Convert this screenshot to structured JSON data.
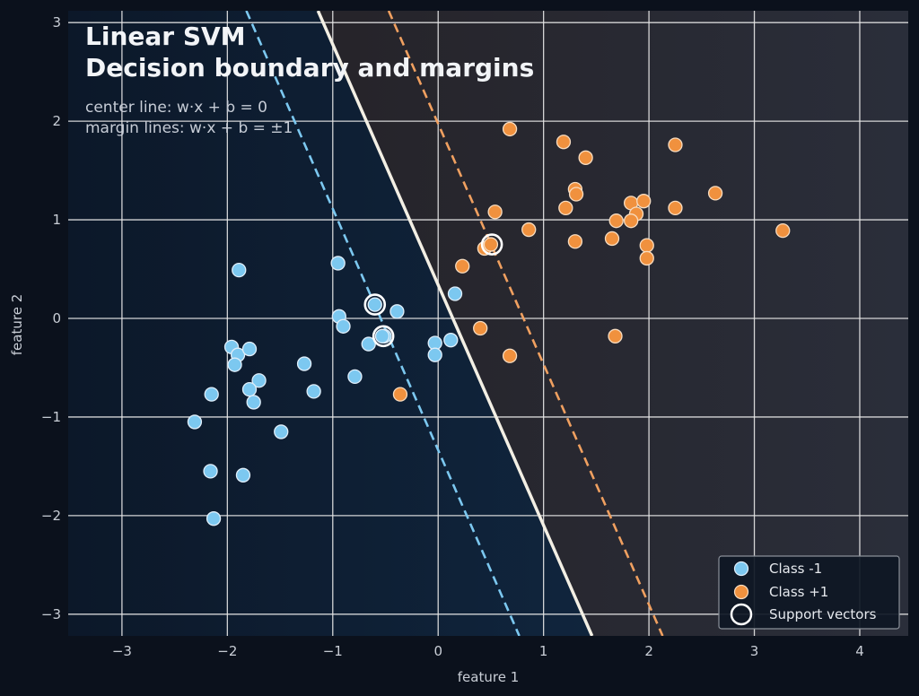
{
  "chart_data": {
    "type": "scatter",
    "title_lines": [
      "Linear SVM",
      "Decision boundary and margins"
    ],
    "annotations": [
      "center line:  w·x + b = 0",
      "margin lines:  w·x + b = ±1"
    ],
    "xlabel": "feature 1",
    "ylabel": "feature 2",
    "xlim": [
      -3.51,
      4.46
    ],
    "ylim": [
      -3.22,
      3.12
    ],
    "xticks": [
      -3,
      -2,
      -1,
      0,
      1,
      2,
      3,
      4
    ],
    "yticks": [
      -3,
      -2,
      -1,
      0,
      1,
      2,
      3
    ],
    "xtick_labels": [
      "−3",
      "−2",
      "−1",
      "0",
      "1",
      "2",
      "3",
      "4"
    ],
    "ytick_labels": [
      "−3",
      "−2",
      "−1",
      "0",
      "1",
      "2",
      "3"
    ],
    "grid": true,
    "legend_position": "bottom-right",
    "colors": {
      "class_neg": "#7cc8f0",
      "class_pos": "#f0913e",
      "center_line": "#f3efe4",
      "margin_neg": "#7cc8f0",
      "margin_pos": "#f0a060",
      "region_neg": "#0f2236",
      "region_pos": "#25232a"
    },
    "decision_lines": {
      "center": {
        "x_at_ymax": -1.14,
        "x_at_ymin": 1.46
      },
      "margin_neg": {
        "x_at_ymax": -1.82,
        "x_at_ymin": 0.77
      },
      "margin_pos": {
        "x_at_ymax": -0.47,
        "x_at_ymin": 2.13
      }
    },
    "series": [
      {
        "name": "Class -1",
        "points": [
          [
            -1.89,
            0.49
          ],
          [
            -0.95,
            0.56
          ],
          [
            -0.6,
            0.14
          ],
          [
            -0.39,
            0.07
          ],
          [
            -0.94,
            0.02
          ],
          [
            -0.9,
            -0.08
          ],
          [
            -0.66,
            -0.26
          ],
          [
            -0.51,
            -0.18
          ],
          [
            -0.03,
            -0.25
          ],
          [
            -0.03,
            -0.37
          ],
          [
            0.16,
            0.25
          ],
          [
            0.12,
            -0.22
          ],
          [
            -1.96,
            -0.29
          ],
          [
            -1.9,
            -0.37
          ],
          [
            -1.93,
            -0.47
          ],
          [
            -1.79,
            -0.31
          ],
          [
            -1.7,
            -0.63
          ],
          [
            -1.79,
            -0.72
          ],
          [
            -1.75,
            -0.85
          ],
          [
            -2.15,
            -0.77
          ],
          [
            -0.79,
            -0.59
          ],
          [
            -1.18,
            -0.74
          ],
          [
            -1.27,
            -0.46
          ],
          [
            -1.49,
            -1.15
          ],
          [
            -2.31,
            -1.05
          ],
          [
            -2.16,
            -1.55
          ],
          [
            -1.85,
            -1.59
          ],
          [
            -2.13,
            -2.03
          ],
          [
            -0.53,
            -0.18
          ]
        ]
      },
      {
        "name": "Class +1",
        "points": [
          [
            0.68,
            1.92
          ],
          [
            1.19,
            1.79
          ],
          [
            1.4,
            1.63
          ],
          [
            2.25,
            1.76
          ],
          [
            1.3,
            1.31
          ],
          [
            1.31,
            1.26
          ],
          [
            1.21,
            1.12
          ],
          [
            0.54,
            1.08
          ],
          [
            2.63,
            1.27
          ],
          [
            2.25,
            1.12
          ],
          [
            3.27,
            0.89
          ],
          [
            1.83,
            1.17
          ],
          [
            1.95,
            1.19
          ],
          [
            1.88,
            1.06
          ],
          [
            1.69,
            0.99
          ],
          [
            1.83,
            0.99
          ],
          [
            1.65,
            0.81
          ],
          [
            1.3,
            0.78
          ],
          [
            1.98,
            0.74
          ],
          [
            1.98,
            0.61
          ],
          [
            0.86,
            0.9
          ],
          [
            0.23,
            0.53
          ],
          [
            0.44,
            0.71
          ],
          [
            0.5,
            0.75
          ],
          [
            0.4,
            -0.1
          ],
          [
            0.68,
            -0.38
          ],
          [
            1.68,
            -0.18
          ],
          [
            -0.36,
            -0.77
          ]
        ]
      },
      {
        "name": "Support vectors",
        "points": [
          [
            -0.6,
            0.14
          ],
          [
            -0.52,
            -0.18
          ],
          [
            0.51,
            0.75
          ]
        ]
      }
    ]
  }
}
